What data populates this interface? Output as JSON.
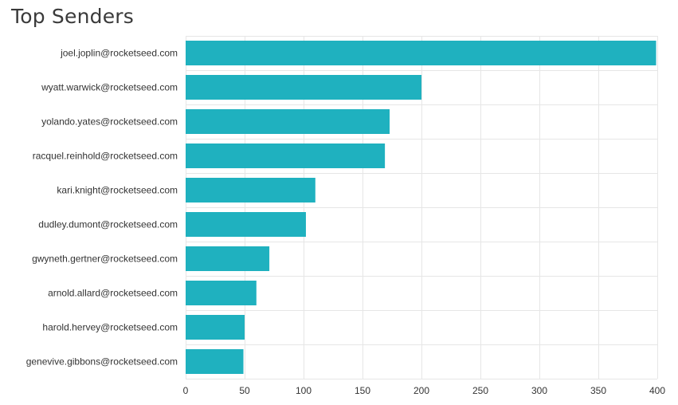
{
  "chart_data": {
    "type": "bar",
    "orientation": "horizontal",
    "title": "Top Senders",
    "xlabel": "",
    "ylabel": "",
    "categories": [
      "joel.joplin@rocketseed.com",
      "wyatt.warwick@rocketseed.com",
      "yolando.yates@rocketseed.com",
      "racquel.reinhold@rocketseed.com",
      "kari.knight@rocketseed.com",
      "dudley.dumont@rocketseed.com",
      "gwyneth.gertner@rocketseed.com",
      "arnold.allard@rocketseed.com",
      "harold.hervey@rocketseed.com",
      "genevive.gibbons@rocketseed.com"
    ],
    "values": [
      399,
      200,
      173,
      169,
      110,
      102,
      71,
      60,
      50,
      49
    ],
    "xlim": [
      0,
      400
    ],
    "xticks": [
      0,
      50,
      100,
      150,
      200,
      250,
      300,
      350,
      400
    ],
    "grid": true,
    "colors": {
      "bar": "#1fb1bf",
      "grid": "#e6e6e6",
      "text": "#333333"
    }
  }
}
